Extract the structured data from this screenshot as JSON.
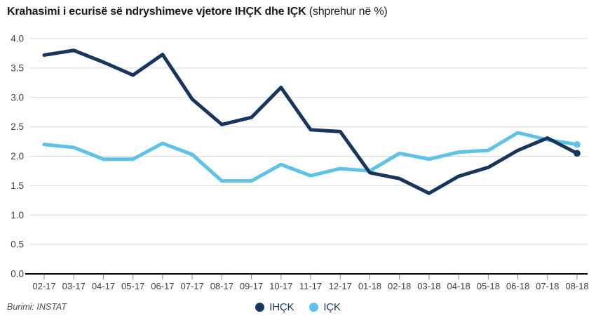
{
  "title": {
    "main": "Krahasimi i ecurisë së ndryshimeve vjetore IHÇK dhe IÇK",
    "suffix": " (shprehur në %)"
  },
  "footer": {
    "source": "Burimi: INSTAT"
  },
  "colors": {
    "navy": "#17365d",
    "sky": "#5cc3e6",
    "grid": "#d9d9d9",
    "axis": "#000000",
    "tick": "#8c8c8c",
    "axis_label": "#404040",
    "title_text": "#1a1a1a",
    "source_text": "#4d4d4d",
    "legend_text": "#16365c"
  },
  "chart_data": {
    "type": "line",
    "title": "Krahasimi i ecurisë së ndryshimeve vjetore IHÇK dhe IÇK (shprehur në %)",
    "xlabel": "",
    "ylabel": "",
    "ylim": [
      0.0,
      4.0
    ],
    "ytick_step": 0.5,
    "grid": true,
    "legend_position": "bottom-center",
    "categories": [
      "02-17",
      "03-17",
      "04-17",
      "05-17",
      "06-17",
      "07-17",
      "08-17",
      "09-17",
      "10-17",
      "11-17",
      "12-17",
      "01-18",
      "02-18",
      "03-18",
      "04-18",
      "05-18",
      "06-18",
      "07-18",
      "08-18"
    ],
    "series": [
      {
        "name": "IHÇK",
        "color": "#17365d",
        "end_marker": true,
        "values": [
          3.72,
          3.8,
          3.6,
          3.38,
          3.73,
          2.97,
          2.54,
          2.66,
          3.17,
          2.45,
          2.42,
          1.72,
          1.62,
          1.37,
          1.66,
          1.81,
          2.1,
          2.31,
          2.05
        ]
      },
      {
        "name": "IÇK",
        "color": "#5cc3e6",
        "end_marker": true,
        "values": [
          2.2,
          2.15,
          1.95,
          1.95,
          2.22,
          2.03,
          1.58,
          1.58,
          1.86,
          1.67,
          1.79,
          1.75,
          2.05,
          1.95,
          2.07,
          2.1,
          2.4,
          2.28,
          2.2
        ]
      }
    ]
  }
}
